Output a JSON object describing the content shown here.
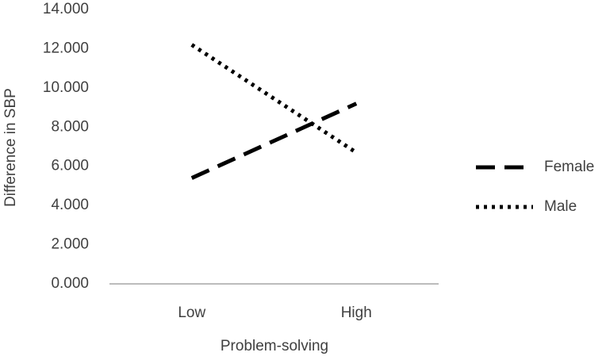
{
  "chart_data": {
    "type": "line",
    "x_label": "Problem-solving",
    "y_label": "Difference in SBP",
    "categories": [
      "Low",
      "High"
    ],
    "series": [
      {
        "name": "Female",
        "color": "#000000",
        "style": "dashed",
        "values": [
          5.4,
          9.2
        ]
      },
      {
        "name": "Male",
        "color": "#000000",
        "style": "dotted",
        "values": [
          12.2,
          6.7
        ]
      }
    ],
    "ylim": [
      0,
      14
    ],
    "yticks": [
      {
        "value": 0,
        "label": "0.000"
      },
      {
        "value": 2,
        "label": "2.000"
      },
      {
        "value": 4,
        "label": "4.000"
      },
      {
        "value": 6,
        "label": "6.000"
      },
      {
        "value": 8,
        "label": "8.000"
      },
      {
        "value": 10,
        "label": "10.000"
      },
      {
        "value": 12,
        "label": "12.000"
      },
      {
        "value": 14,
        "label": "14.000"
      }
    ],
    "grid": false,
    "legend": "right"
  }
}
